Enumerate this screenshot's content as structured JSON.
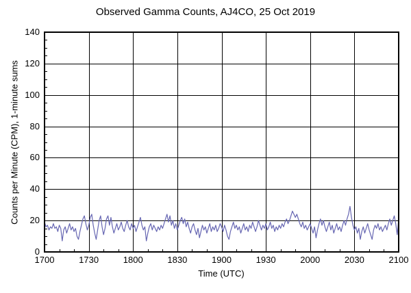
{
  "chart_data": {
    "type": "line",
    "title": "Observed Gamma Counts, AJ4CO, 25 Oct 2019",
    "xlabel": "Time (UTC)",
    "ylabel": "Counts per Minute (CPM), 1-minute sums",
    "x_tick_labels": [
      "1700",
      "1730",
      "1800",
      "1830",
      "1900",
      "1930",
      "2000",
      "2030",
      "2100"
    ],
    "x_tick_minutes": [
      0,
      30,
      60,
      90,
      120,
      150,
      180,
      210,
      240
    ],
    "x_minor_step_minutes": 10,
    "y_ticks": [
      0,
      20,
      40,
      60,
      80,
      100,
      120,
      140
    ],
    "y_tick_labels": [
      "0",
      "20",
      "40",
      "60",
      "80",
      "100",
      "120",
      "140"
    ],
    "y_minor_step": 5,
    "ylim": [
      0,
      140
    ],
    "xlim_minutes": [
      0,
      240
    ],
    "start_time_utc": "1700",
    "sample_interval_minutes": 1,
    "grid": true,
    "legend": "none",
    "line_color": "#6666b2",
    "grid_color": "#000000",
    "text_color": "#000000",
    "background_color": "#ffffff",
    "values": [
      19,
      16,
      17,
      14,
      16,
      15,
      18,
      15,
      16,
      13,
      17,
      15,
      7,
      14,
      16,
      12,
      15,
      18,
      14,
      16,
      13,
      15,
      10,
      8,
      13,
      17,
      21,
      23,
      18,
      14,
      17,
      22,
      24,
      17,
      12,
      8,
      14,
      20,
      23,
      16,
      11,
      15,
      21,
      23,
      17,
      22,
      16,
      12,
      15,
      18,
      14,
      16,
      19,
      15,
      13,
      17,
      20,
      16,
      14,
      18,
      15,
      17,
      13,
      16,
      19,
      22,
      17,
      14,
      16,
      7,
      12,
      16,
      18,
      14,
      17,
      15,
      13,
      16,
      14,
      17,
      15,
      18,
      21,
      24,
      19,
      23,
      17,
      20,
      15,
      18,
      14,
      17,
      20,
      22,
      18,
      21,
      16,
      19,
      15,
      12,
      16,
      18,
      14,
      11,
      15,
      9,
      13,
      17,
      14,
      16,
      12,
      15,
      18,
      13,
      16,
      14,
      17,
      13,
      15,
      18,
      16,
      13,
      17,
      14,
      10,
      8,
      13,
      16,
      19,
      15,
      17,
      14,
      16,
      12,
      15,
      18,
      14,
      16,
      13,
      17,
      15,
      19,
      16,
      13,
      16,
      20,
      17,
      14,
      17,
      15,
      18,
      14,
      16,
      19,
      15,
      17,
      13,
      16,
      14,
      17,
      15,
      18,
      16,
      19,
      21,
      18,
      20,
      23,
      26,
      24,
      22,
      24,
      21,
      18,
      16,
      19,
      15,
      17,
      14,
      16,
      18,
      15,
      12,
      16,
      9,
      14,
      18,
      21,
      17,
      20,
      16,
      13,
      16,
      19,
      14,
      17,
      12,
      15,
      18,
      14,
      16,
      13,
      17,
      20,
      17,
      21,
      24,
      29,
      22,
      17,
      14,
      16,
      12,
      15,
      8,
      13,
      16,
      12,
      15,
      18,
      14,
      11,
      8,
      14,
      17,
      15,
      18,
      14,
      16,
      13,
      15,
      17,
      14,
      18,
      21,
      17,
      20,
      23,
      18,
      11,
      21
    ]
  }
}
